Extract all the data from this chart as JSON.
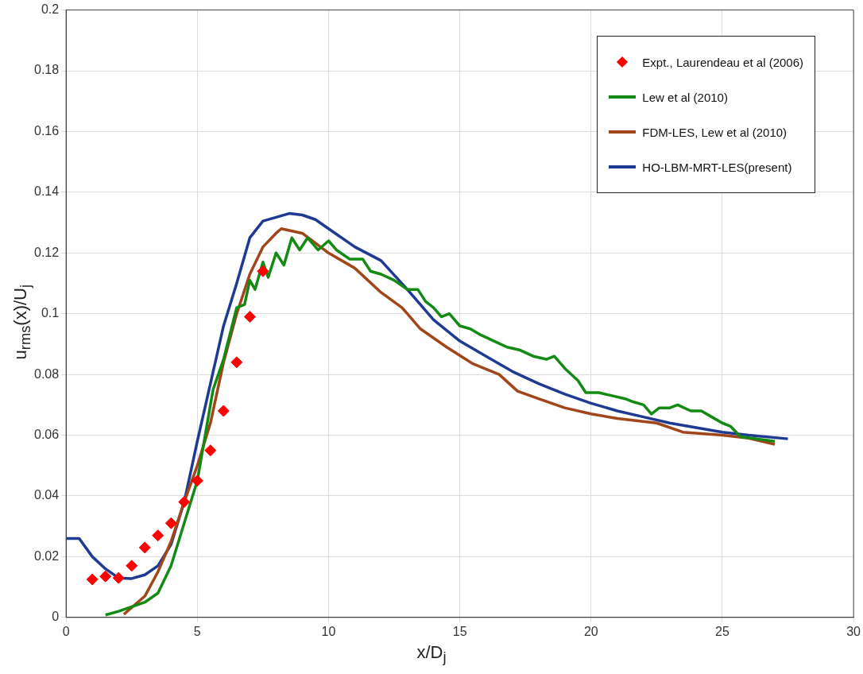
{
  "chart_data": {
    "type": "line",
    "xlabel": "x/D$_{j}$",
    "ylabel": "u$_{rms}$(x)/U$_{j}$",
    "xlim": [
      0,
      30
    ],
    "xticks": [
      0,
      5,
      10,
      15,
      20,
      25,
      30
    ],
    "ylim": [
      0,
      0.2
    ],
    "yticks": [
      0,
      0.02,
      0.04,
      0.06,
      0.08,
      0.1,
      0.12,
      0.14,
      0.16,
      0.18,
      0.2
    ],
    "grid": true,
    "legend": "top right",
    "line_style": "solid",
    "series": [
      {
        "name": "Expt., Laurendeau et al (2006)",
        "type": "scatter",
        "marker": "diamond",
        "color": "#ff0000",
        "x": [
          1,
          1.5,
          2,
          2.5,
          3,
          3.5,
          4,
          4.5,
          5,
          5.5,
          6,
          6.5,
          7,
          7.5
        ],
        "values": [
          0.0125,
          0.0135,
          0.013,
          0.017,
          0.023,
          0.027,
          0.031,
          0.038,
          0.045,
          0.055,
          0.068,
          0.084,
          0.099,
          0.114
        ]
      },
      {
        "name": "Lew et al (2010)",
        "marker": "none",
        "color": "#138a13",
        "x": [
          1.5,
          2,
          3,
          3.5,
          4,
          4.5,
          5,
          5.3,
          5.6,
          6,
          6.5,
          6.8,
          7,
          7.2,
          7.5,
          7.7,
          8,
          8.3,
          8.6,
          8.9,
          9.2,
          9.6,
          10,
          10.3,
          10.8,
          11.3,
          11.6,
          12,
          12.5,
          13,
          13.4,
          13.7,
          14,
          14.3,
          14.6,
          15,
          15.4,
          15.8,
          16.3,
          16.8,
          17.3,
          17.8,
          18.3,
          18.6,
          19,
          19.5,
          19.8,
          20.3,
          20.8,
          21.3,
          21.6,
          22,
          22.3,
          22.6,
          23,
          23.3,
          23.8,
          24.2,
          24.6,
          25,
          25.3,
          25.7,
          27
        ],
        "values": [
          0.0008,
          0.002,
          0.005,
          0.008,
          0.017,
          0.031,
          0.045,
          0.06,
          0.075,
          0.085,
          0.102,
          0.103,
          0.111,
          0.108,
          0.117,
          0.112,
          0.12,
          0.116,
          0.125,
          0.121,
          0.125,
          0.121,
          0.124,
          0.121,
          0.118,
          0.118,
          0.114,
          0.113,
          0.111,
          0.108,
          0.108,
          0.104,
          0.102,
          0.099,
          0.1,
          0.096,
          0.095,
          0.093,
          0.091,
          0.089,
          0.088,
          0.086,
          0.085,
          0.086,
          0.082,
          0.078,
          0.074,
          0.074,
          0.073,
          0.072,
          0.071,
          0.07,
          0.067,
          0.069,
          0.069,
          0.07,
          0.068,
          0.068,
          0.066,
          0.064,
          0.063,
          0.0595,
          0.058
        ]
      },
      {
        "name": "FDM-LES, Lew et al (2010)",
        "marker": "none",
        "color": "#a0461a",
        "x": [
          2.2,
          3,
          3.5,
          4,
          4.5,
          5,
          5.5,
          6,
          6.5,
          7,
          7.5,
          8,
          8.2,
          9,
          10,
          11,
          12,
          12.8,
          13.5,
          14.5,
          15.5,
          16.5,
          17.2,
          18,
          19,
          20,
          21,
          22.5,
          23.5,
          25,
          26,
          27
        ],
        "values": [
          0.001,
          0.007,
          0.015,
          0.025,
          0.038,
          0.05,
          0.064,
          0.084,
          0.1,
          0.113,
          0.122,
          0.1265,
          0.128,
          0.1265,
          0.12,
          0.115,
          0.107,
          0.102,
          0.095,
          0.089,
          0.0835,
          0.08,
          0.0745,
          0.072,
          0.069,
          0.067,
          0.0655,
          0.064,
          0.061,
          0.06,
          0.059,
          0.057
        ]
      },
      {
        "name": "HO-LBM-MRT-LES(present)",
        "marker": "none",
        "color": "#1f3a93",
        "x": [
          0,
          0.5,
          1,
          1.5,
          2,
          2.5,
          3,
          3.5,
          4,
          4.5,
          5,
          5.5,
          6,
          6.5,
          7,
          7.5,
          8.5,
          9,
          9.5,
          10,
          11,
          12,
          13,
          14,
          15,
          16,
          17,
          18,
          19,
          20,
          21,
          22,
          23,
          24,
          25,
          26,
          27.5
        ],
        "values": [
          0.026,
          0.026,
          0.02,
          0.016,
          0.013,
          0.0128,
          0.014,
          0.017,
          0.024,
          0.038,
          0.058,
          0.077,
          0.096,
          0.11,
          0.125,
          0.1305,
          0.133,
          0.1325,
          0.131,
          0.128,
          0.122,
          0.1175,
          0.108,
          0.098,
          0.091,
          0.086,
          0.081,
          0.077,
          0.0735,
          0.0705,
          0.068,
          0.066,
          0.064,
          0.0625,
          0.061,
          0.06,
          0.0588
        ]
      }
    ]
  }
}
